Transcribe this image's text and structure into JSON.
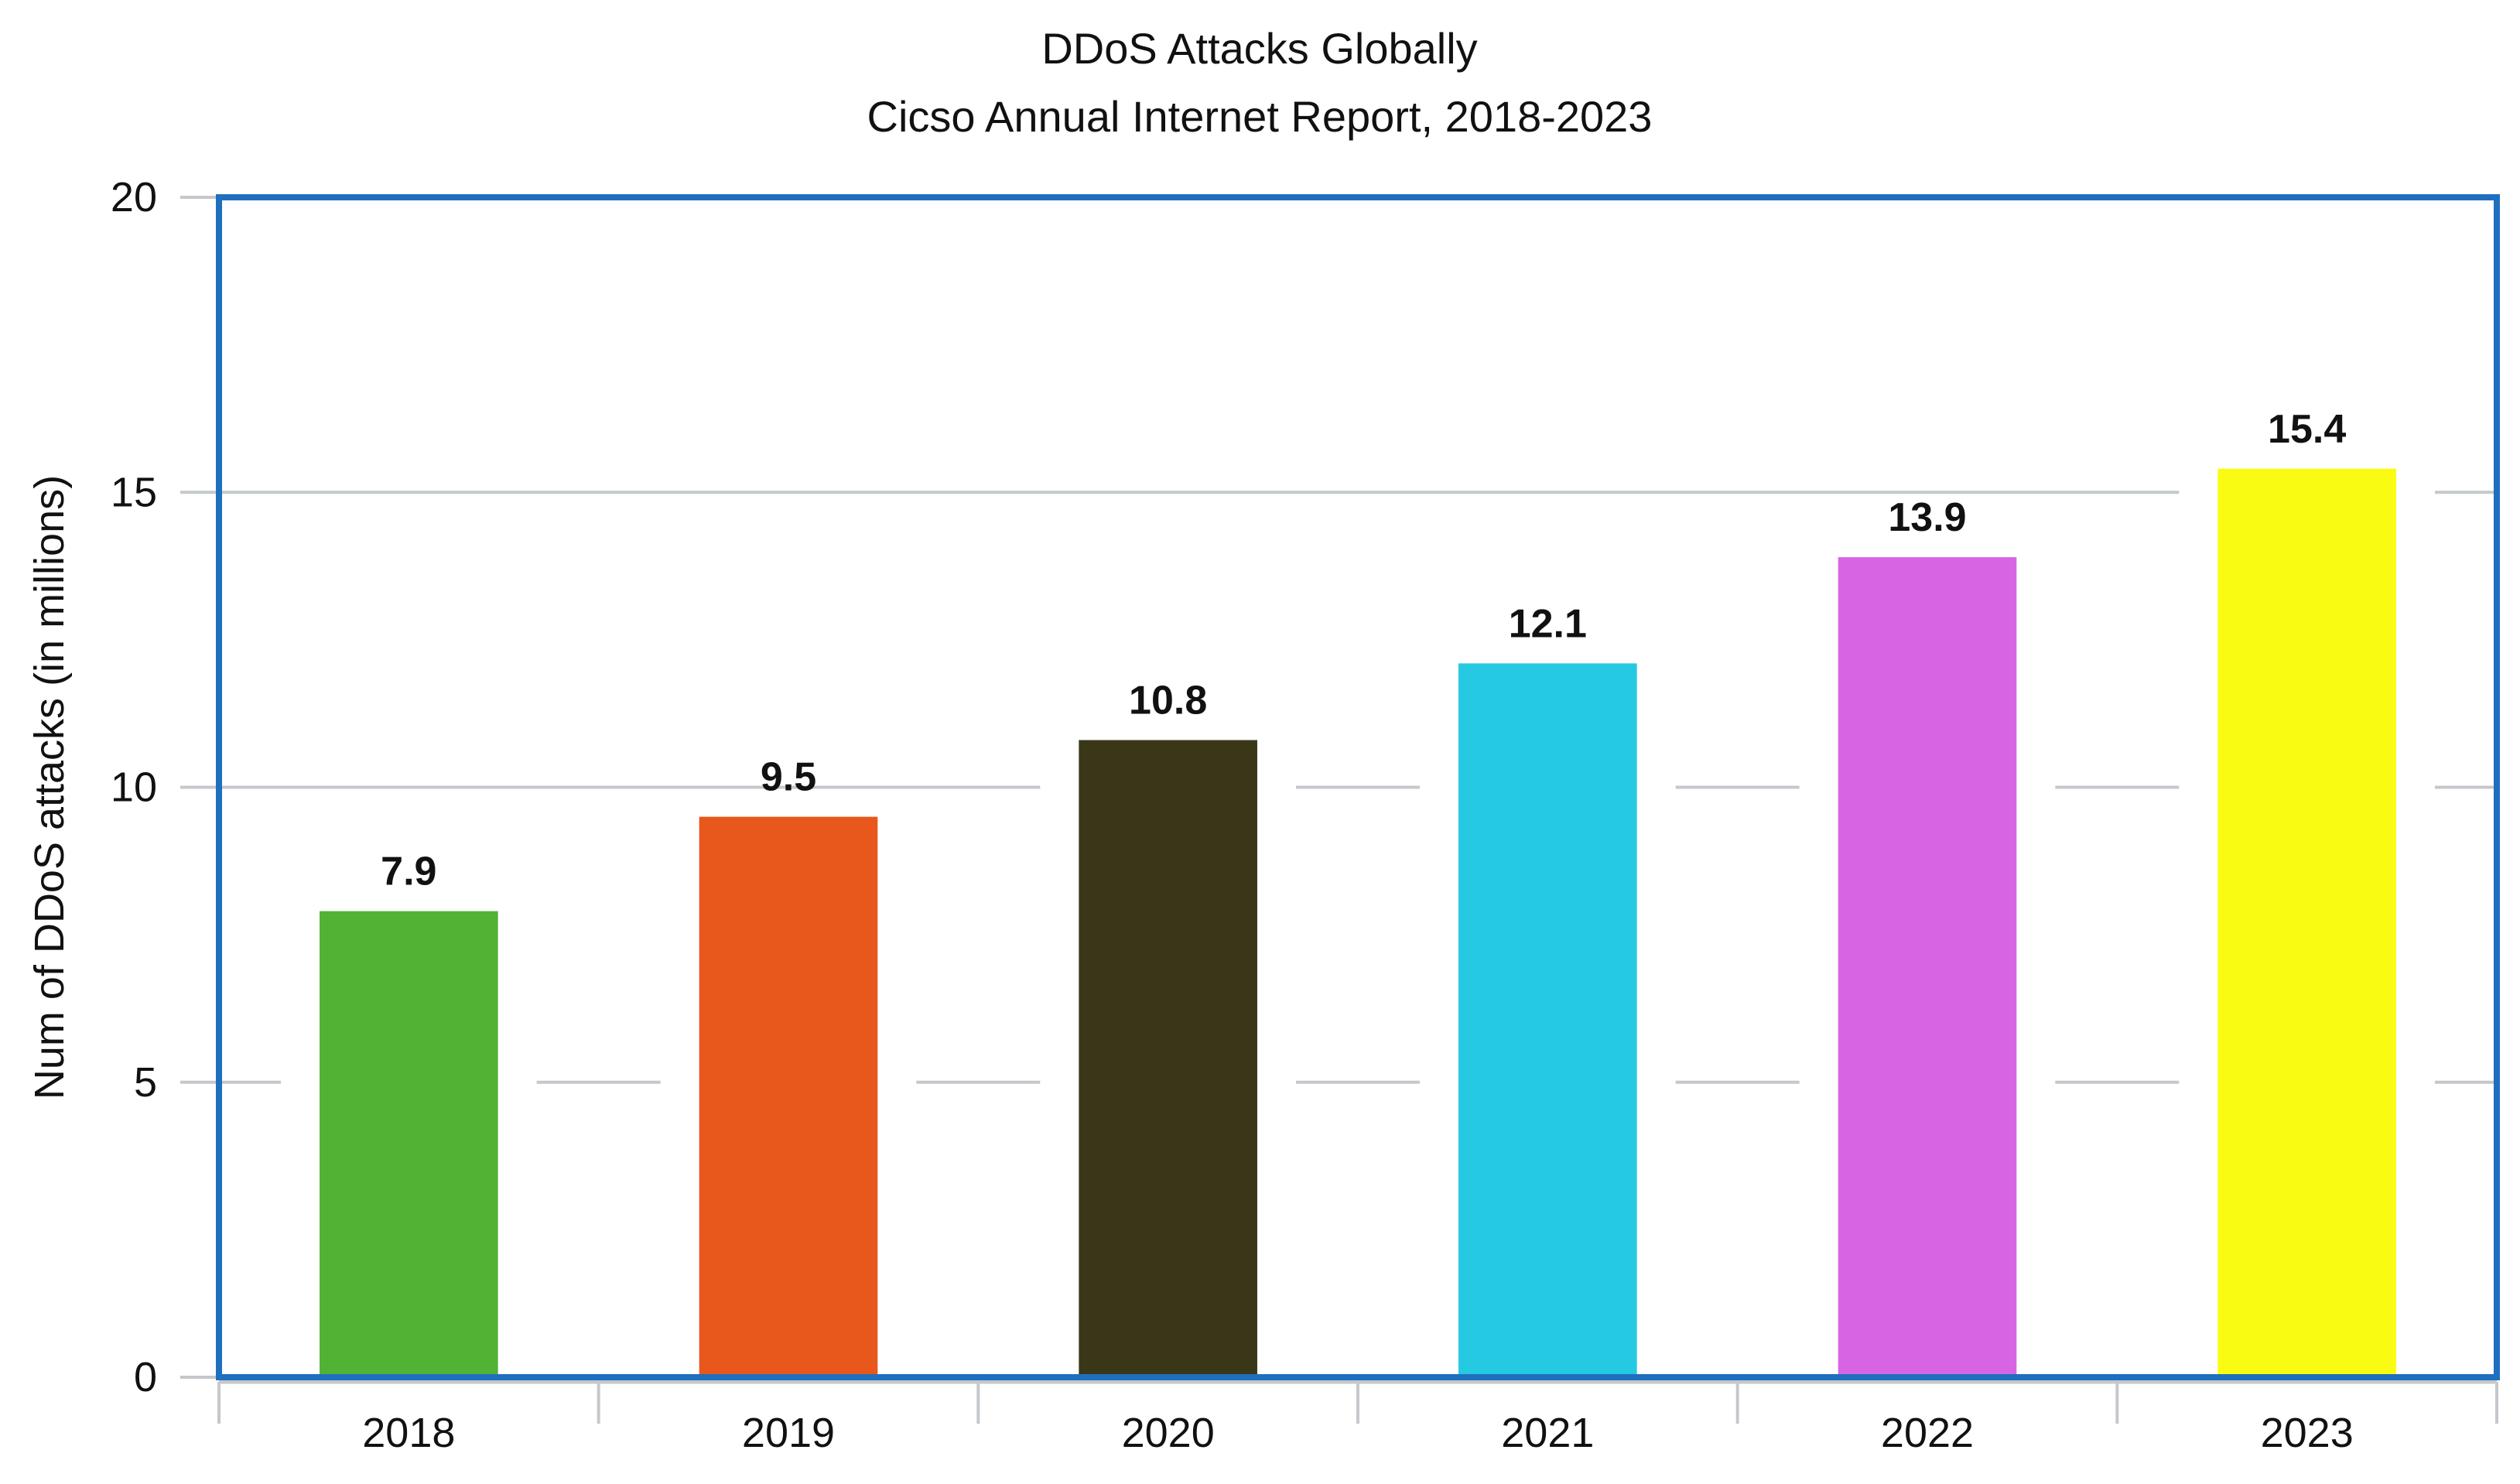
{
  "chart_data": {
    "type": "bar",
    "title": "DDoS Attacks Globally",
    "subtitle": "Cicso Annual Internet Report, 2018-2023",
    "xlabel": "",
    "ylabel": "Num of DDoS attacks (in millions)",
    "categories": [
      "2018",
      "2019",
      "2020",
      "2021",
      "2022",
      "2023"
    ],
    "values": [
      7.9,
      9.5,
      10.8,
      12.1,
      13.9,
      15.4
    ],
    "data_labels": [
      "7.9",
      "9.5",
      "10.8",
      "12.1",
      "13.9",
      "15.4"
    ],
    "bar_colors": [
      "#52b234",
      "#e8571c",
      "#3a3719",
      "#25c9e2",
      "#d765e3",
      "#f9fc12"
    ],
    "ylim": [
      0,
      20
    ],
    "yticks": [
      "0",
      "5",
      "10",
      "15",
      "20"
    ],
    "grid": true,
    "legend": "none",
    "plot_border_color": "#1f6fbf",
    "grid_color": "#c4c8cc"
  }
}
